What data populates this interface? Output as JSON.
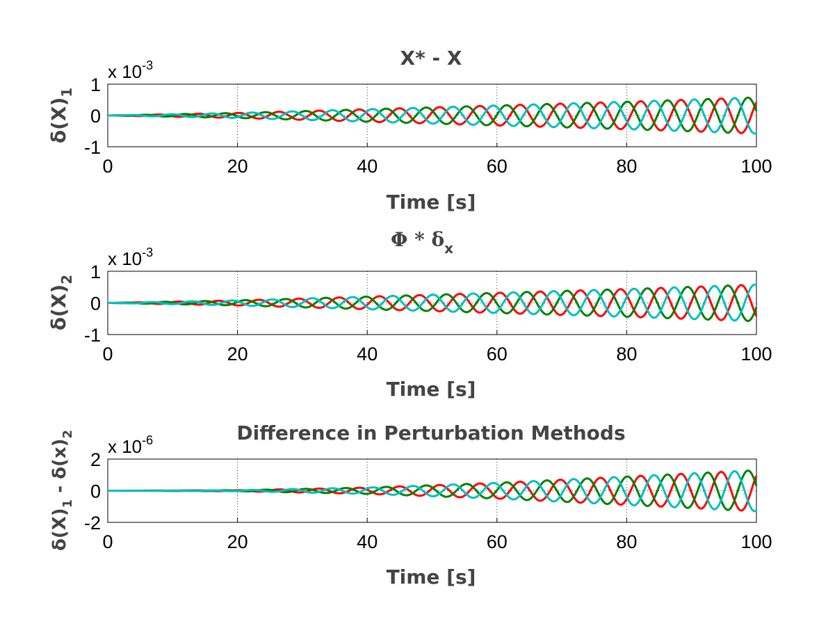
{
  "chart_data": [
    {
      "type": "line",
      "title": "X* - X",
      "ylabel": "δ(X)",
      "ylabel_sub": "1",
      "xlabel": "Time [s]",
      "exponent": {
        "base": "x 10",
        "power": "-3"
      },
      "xlim": [
        0,
        100
      ],
      "ylim": [
        -1,
        1
      ],
      "xticks": [
        "0",
        "20",
        "40",
        "60",
        "80",
        "100"
      ],
      "yticks": [
        "1",
        "0",
        "-1"
      ],
      "grid": true,
      "series": [
        {
          "color": "#ff0000",
          "phase_deg": 0,
          "amplitude_x1e3": [
            [
              0,
              0
            ],
            [
              20,
              0.08
            ],
            [
              40,
              0.2
            ],
            [
              60,
              0.32
            ],
            [
              80,
              0.44
            ],
            [
              100,
              0.58
            ]
          ]
        },
        {
          "color": "#008000",
          "phase_deg": 120,
          "amplitude_x1e3": [
            [
              0,
              0
            ],
            [
              20,
              0.08
            ],
            [
              40,
              0.2
            ],
            [
              60,
              0.32
            ],
            [
              80,
              0.44
            ],
            [
              100,
              0.58
            ]
          ]
        },
        {
          "color": "#00bfbf",
          "phase_deg": 240,
          "amplitude_x1e3": [
            [
              0,
              0
            ],
            [
              20,
              0.08
            ],
            [
              40,
              0.2
            ],
            [
              60,
              0.32
            ],
            [
              80,
              0.44
            ],
            [
              100,
              0.58
            ]
          ]
        }
      ],
      "period_s": 6.2
    },
    {
      "type": "line",
      "title": "Φ * δ",
      "title_sub": "x",
      "ylabel": "δ(X)",
      "ylabel_sub": "2",
      "xlabel": "Time [s]",
      "exponent": {
        "base": "x 10",
        "power": "-3"
      },
      "xlim": [
        0,
        100
      ],
      "ylim": [
        -1,
        1
      ],
      "xticks": [
        "0",
        "20",
        "40",
        "60",
        "80",
        "100"
      ],
      "yticks": [
        "1",
        "0",
        "-1"
      ],
      "grid": true,
      "series": [
        {
          "color": "#ff0000",
          "phase_deg": 180,
          "amplitude_x1e3": [
            [
              0,
              0
            ],
            [
              20,
              0.08
            ],
            [
              40,
              0.2
            ],
            [
              60,
              0.32
            ],
            [
              80,
              0.44
            ],
            [
              100,
              0.58
            ]
          ]
        },
        {
          "color": "#008000",
          "phase_deg": 300,
          "amplitude_x1e3": [
            [
              0,
              0
            ],
            [
              20,
              0.08
            ],
            [
              40,
              0.2
            ],
            [
              60,
              0.32
            ],
            [
              80,
              0.44
            ],
            [
              100,
              0.58
            ]
          ]
        },
        {
          "color": "#00bfbf",
          "phase_deg": 60,
          "amplitude_x1e3": [
            [
              0,
              0
            ],
            [
              20,
              0.08
            ],
            [
              40,
              0.2
            ],
            [
              60,
              0.32
            ],
            [
              80,
              0.44
            ],
            [
              100,
              0.58
            ]
          ]
        }
      ],
      "period_s": 6.2
    },
    {
      "type": "line",
      "title": "Difference in Perturbation Methods",
      "ylabel": "δ(X)",
      "ylabel_sub": "1",
      "ylabel_mid": " - δ(x)",
      "ylabel_sub2": "2",
      "xlabel": "Time [s]",
      "exponent": {
        "base": "x 10",
        "power": "-6"
      },
      "xlim": [
        0,
        100
      ],
      "ylim": [
        -2,
        2
      ],
      "xticks": [
        "0",
        "20",
        "40",
        "60",
        "80",
        "100"
      ],
      "yticks": [
        "2",
        "0",
        "-2"
      ],
      "grid": true,
      "series": [
        {
          "color": "#ff0000",
          "phase_deg": 0,
          "amplitude_x1e6": [
            [
              0,
              0
            ],
            [
              20,
              0.03
            ],
            [
              40,
              0.2
            ],
            [
              60,
              0.5
            ],
            [
              80,
              0.9
            ],
            [
              100,
              1.3
            ]
          ]
        },
        {
          "color": "#008000",
          "phase_deg": 120,
          "amplitude_x1e6": [
            [
              0,
              0
            ],
            [
              20,
              0.03
            ],
            [
              40,
              0.2
            ],
            [
              60,
              0.5
            ],
            [
              80,
              0.9
            ],
            [
              100,
              1.3
            ]
          ]
        },
        {
          "color": "#00bfbf",
          "phase_deg": 240,
          "amplitude_x1e6": [
            [
              0,
              0
            ],
            [
              20,
              0.03
            ],
            [
              40,
              0.2
            ],
            [
              60,
              0.5
            ],
            [
              80,
              0.9
            ],
            [
              100,
              1.3
            ]
          ]
        }
      ],
      "period_s": 6.2
    }
  ]
}
